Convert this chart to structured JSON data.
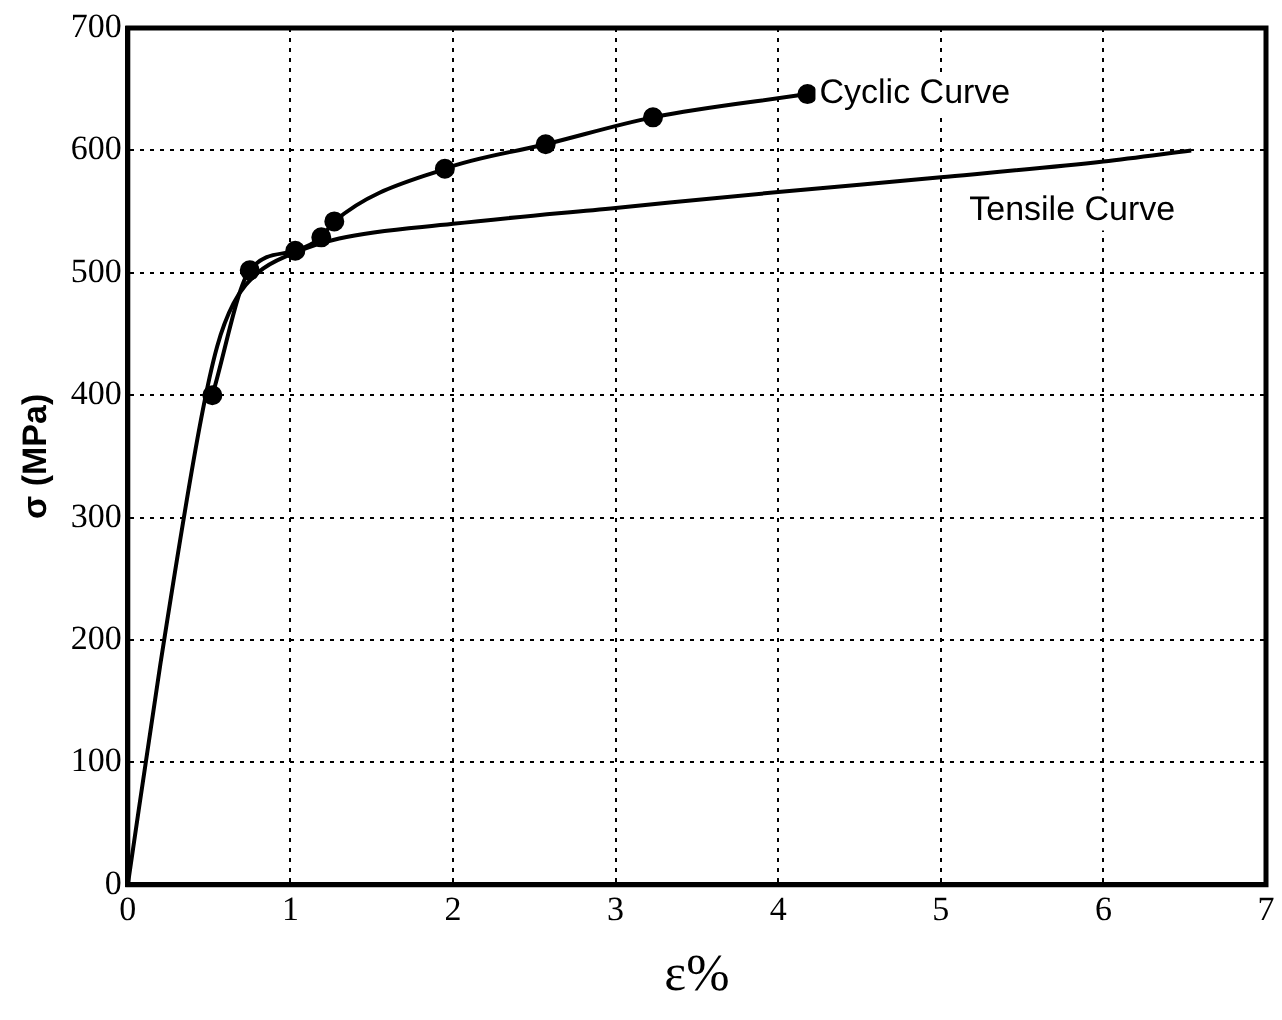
{
  "chart_data": {
    "type": "line",
    "xlabel": "ε%",
    "ylabel": "σ (MPa)",
    "xlim": [
      0,
      7
    ],
    "ylim": [
      0,
      700
    ],
    "xticks": [
      0,
      1,
      2,
      3,
      4,
      5,
      6,
      7
    ],
    "yticks": [
      0,
      100,
      200,
      300,
      400,
      500,
      600,
      700
    ],
    "grid": true,
    "legend": false,
    "series": [
      {
        "name": "Cyclic Curve",
        "color": "#000000",
        "marker": "circle",
        "x": [
          0.52,
          0.75,
          1.03,
          1.19,
          1.27,
          1.95,
          2.57,
          3.23,
          4.18
        ],
        "values": [
          400,
          502,
          518,
          529,
          542,
          585,
          605,
          627,
          646
        ]
      },
      {
        "name": "Tensile Curve",
        "color": "#000000",
        "marker": "none",
        "x": [
          0,
          0.2,
          0.45,
          0.55,
          0.65,
          0.8,
          1,
          1.3,
          2,
          3,
          4,
          5,
          6,
          6.54
        ],
        "values": [
          0,
          180,
          380,
          440,
          475,
          500,
          515,
          528,
          540,
          553,
          566,
          578,
          591,
          600
        ]
      }
    ]
  }
}
